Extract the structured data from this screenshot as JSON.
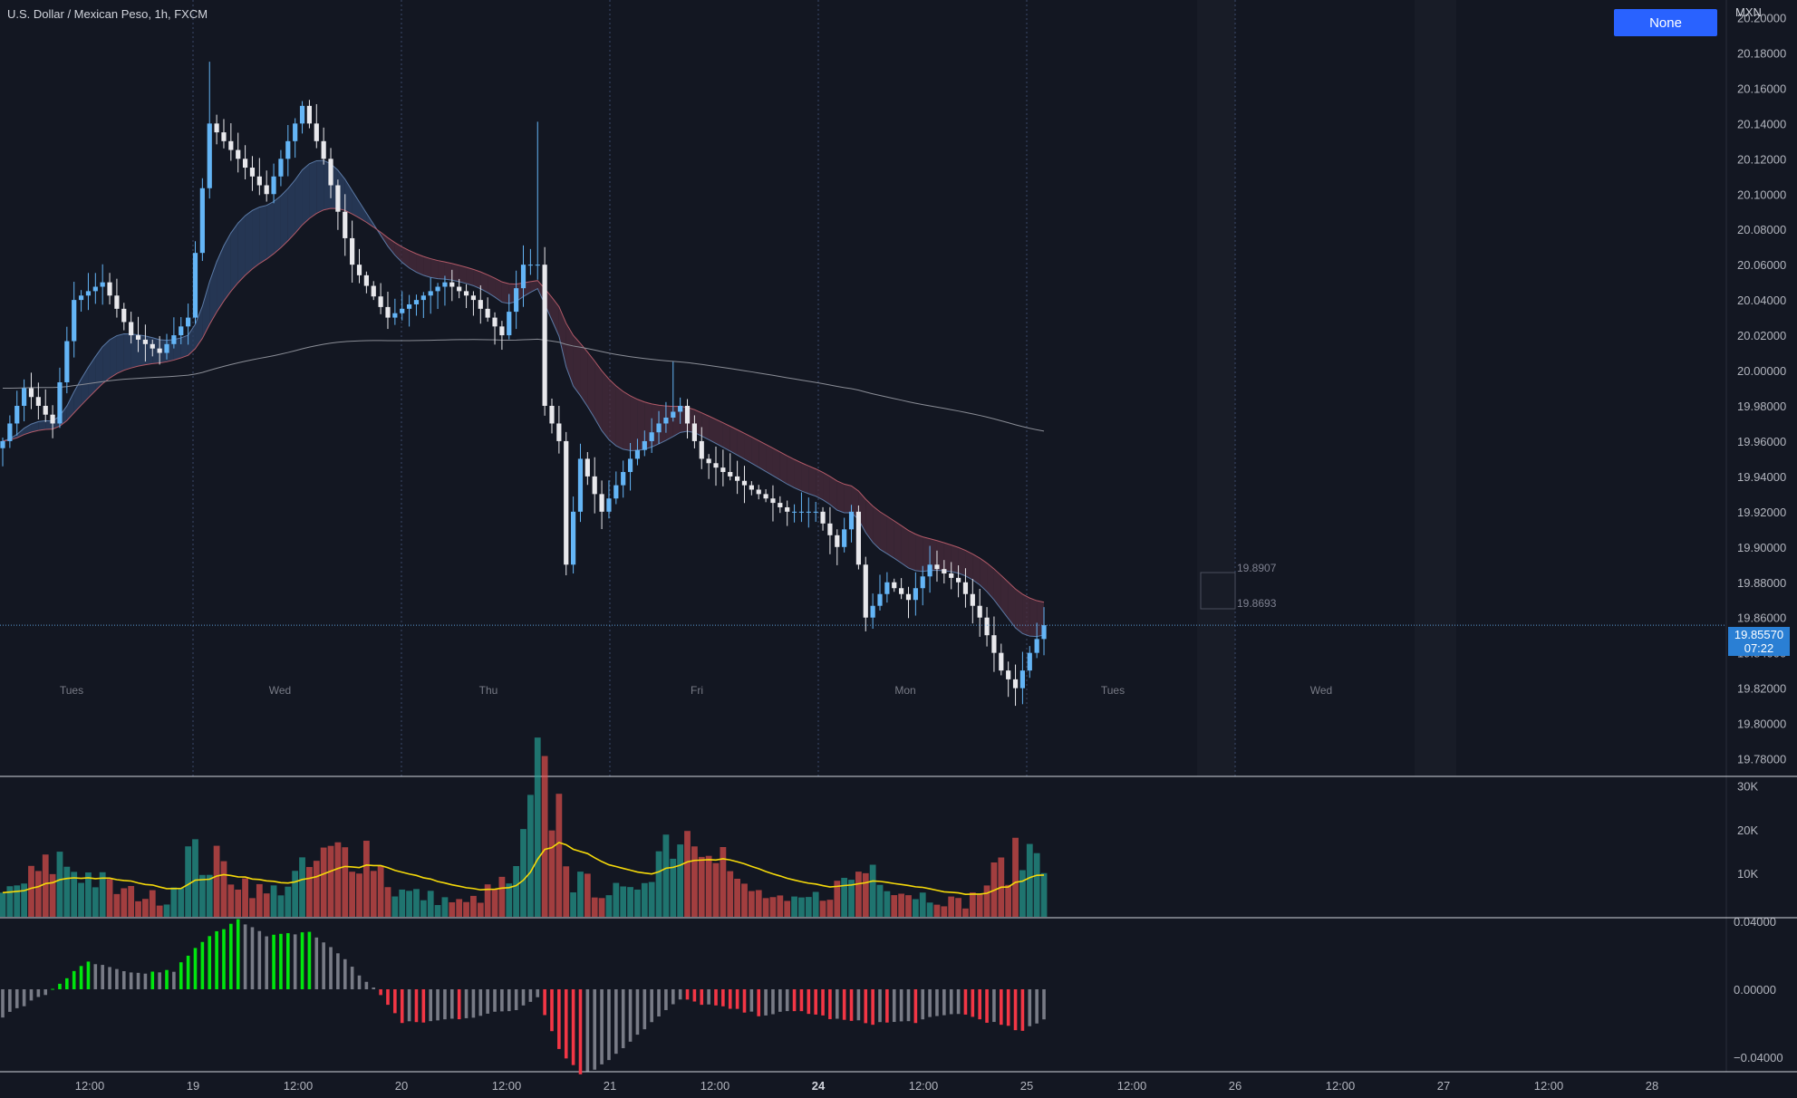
{
  "header": {
    "title": "U.S. Dollar / Mexican Peso, 1h, FXCM",
    "currency": "MXN",
    "mode_button": "None"
  },
  "price_tag": {
    "price": "19.85570",
    "countdown": "07:22"
  },
  "colors": {
    "background": "#131722",
    "up_candle": "#64b5f6",
    "down_candle": "#e8e8ec",
    "vol_up": "#26a69a",
    "vol_down": "#ef5350",
    "volume_ma": "#f5d90a",
    "macd_green": "#00e60e",
    "macd_gray": "#787b86",
    "macd_red": "#f23645",
    "ribbon_blue": "#5b7aa6",
    "ribbon_red": "#b35a68",
    "sma_line": "#8a8d96"
  },
  "chart_data": [
    {
      "type": "candlestick",
      "title": "U.S. Dollar / Mexican Peso, 1h, FXCM",
      "ylabel": "MXN",
      "ylim": [
        19.77,
        20.21
      ],
      "y_ticks": [
        "20.20000",
        "20.18000",
        "20.16000",
        "20.14000",
        "20.12000",
        "20.10000",
        "20.08000",
        "20.06000",
        "20.04000",
        "20.02000",
        "20.00000",
        "19.98000",
        "19.96000",
        "19.94000",
        "19.92000",
        "19.90000",
        "19.88000",
        "19.86000",
        "19.84000",
        "19.82000",
        "19.80000",
        "19.78000"
      ],
      "session_labels": [
        "Tues",
        "Wed",
        "Thu",
        "Fri",
        "Mon",
        "Tues",
        "Wed"
      ],
      "annotations": [
        "19.8907",
        "19.8693"
      ],
      "x_ticks": [
        "12:00",
        "19",
        "12:00",
        "20",
        "12:00",
        "21",
        "12:00",
        "24",
        "12:00",
        "25",
        "12:00",
        "26",
        "12:00",
        "27",
        "12:00",
        "28"
      ],
      "last_price": 19.8557,
      "keypoints": [
        {
          "bar": 0,
          "price": 19.96
        },
        {
          "bar": 3,
          "price": 19.99
        },
        {
          "bar": 7,
          "price": 19.97
        },
        {
          "bar": 10,
          "price": 20.04
        },
        {
          "bar": 14,
          "price": 20.05
        },
        {
          "bar": 18,
          "price": 20.02
        },
        {
          "bar": 22,
          "price": 20.01
        },
        {
          "bar": 26,
          "price": 20.03
        },
        {
          "bar": 29,
          "price": 20.14
        },
        {
          "bar": 33,
          "price": 20.12
        },
        {
          "bar": 37,
          "price": 20.1
        },
        {
          "bar": 42,
          "price": 20.15
        },
        {
          "bar": 45,
          "price": 20.12
        },
        {
          "bar": 49,
          "price": 20.06
        },
        {
          "bar": 54,
          "price": 20.03
        },
        {
          "bar": 58,
          "price": 20.04
        },
        {
          "bar": 62,
          "price": 20.05
        },
        {
          "bar": 66,
          "price": 20.04
        },
        {
          "bar": 70,
          "price": 20.02
        },
        {
          "bar": 73,
          "price": 20.06
        },
        {
          "bar": 75,
          "price": 20.06
        },
        {
          "bar": 76,
          "price": 19.98
        },
        {
          "bar": 78,
          "price": 19.96
        },
        {
          "bar": 79,
          "price": 19.89
        },
        {
          "bar": 81,
          "price": 19.95
        },
        {
          "bar": 84,
          "price": 19.92
        },
        {
          "bar": 88,
          "price": 19.95
        },
        {
          "bar": 92,
          "price": 19.97
        },
        {
          "bar": 95,
          "price": 19.98
        },
        {
          "bar": 98,
          "price": 19.95
        },
        {
          "bar": 102,
          "price": 19.94
        },
        {
          "bar": 106,
          "price": 19.93
        },
        {
          "bar": 110,
          "price": 19.92
        },
        {
          "bar": 114,
          "price": 19.92
        },
        {
          "bar": 117,
          "price": 19.9
        },
        {
          "bar": 119,
          "price": 19.92
        },
        {
          "bar": 121,
          "price": 19.86
        },
        {
          "bar": 124,
          "price": 19.88
        },
        {
          "bar": 127,
          "price": 19.87
        },
        {
          "bar": 130,
          "price": 19.89
        },
        {
          "bar": 134,
          "price": 19.88
        },
        {
          "bar": 137,
          "price": 19.86
        },
        {
          "bar": 140,
          "price": 19.83
        },
        {
          "bar": 142,
          "price": 19.82
        },
        {
          "bar": 144,
          "price": 19.84
        },
        {
          "bar": 146,
          "price": 19.8557
        }
      ]
    },
    {
      "type": "bar",
      "title": "Volume",
      "ylim": [
        0,
        32000
      ],
      "y_ticks": [
        "30K",
        "20K",
        "10K"
      ],
      "keypoints": [
        {
          "bar": 0,
          "value": 5000
        },
        {
          "bar": 8,
          "value": 13000
        },
        {
          "bar": 16,
          "value": 6000
        },
        {
          "bar": 23,
          "value": 4000
        },
        {
          "bar": 26,
          "value": 14000
        },
        {
          "bar": 30,
          "value": 12000
        },
        {
          "bar": 37,
          "value": 5000
        },
        {
          "bar": 46,
          "value": 14000
        },
        {
          "bar": 51,
          "value": 16000
        },
        {
          "bar": 55,
          "value": 6000
        },
        {
          "bar": 65,
          "value": 3000
        },
        {
          "bar": 72,
          "value": 9000
        },
        {
          "bar": 75,
          "value": 31000
        },
        {
          "bar": 78,
          "value": 24000
        },
        {
          "bar": 80,
          "value": 8000
        },
        {
          "bar": 88,
          "value": 5000
        },
        {
          "bar": 93,
          "value": 18000
        },
        {
          "bar": 99,
          "value": 22000
        },
        {
          "bar": 103,
          "value": 7000
        },
        {
          "bar": 110,
          "value": 3000
        },
        {
          "bar": 115,
          "value": 5000
        },
        {
          "bar": 122,
          "value": 12000
        },
        {
          "bar": 126,
          "value": 6000
        },
        {
          "bar": 135,
          "value": 3000
        },
        {
          "bar": 140,
          "value": 11000
        },
        {
          "bar": 144,
          "value": 15000
        },
        {
          "bar": 146,
          "value": 16000
        }
      ]
    },
    {
      "type": "bar",
      "title": "MACD histogram",
      "ylim": [
        -0.052,
        0.05
      ],
      "y_ticks": [
        "0.04000",
        "0.00000",
        "−0.04000"
      ],
      "keypoints": [
        {
          "bar": 0,
          "value": -0.016
        },
        {
          "bar": 6,
          "value": -0.003
        },
        {
          "bar": 9,
          "value": 0.007
        },
        {
          "bar": 12,
          "value": 0.016
        },
        {
          "bar": 18,
          "value": 0.009
        },
        {
          "bar": 24,
          "value": 0.011
        },
        {
          "bar": 28,
          "value": 0.028
        },
        {
          "bar": 33,
          "value": 0.042
        },
        {
          "bar": 37,
          "value": 0.031
        },
        {
          "bar": 43,
          "value": 0.034
        },
        {
          "bar": 48,
          "value": 0.018
        },
        {
          "bar": 51,
          "value": 0.004
        },
        {
          "bar": 53,
          "value": -0.003
        },
        {
          "bar": 56,
          "value": -0.02
        },
        {
          "bar": 60,
          "value": -0.019
        },
        {
          "bar": 66,
          "value": -0.016
        },
        {
          "bar": 72,
          "value": -0.012
        },
        {
          "bar": 75,
          "value": -0.004
        },
        {
          "bar": 78,
          "value": -0.035
        },
        {
          "bar": 81,
          "value": -0.05
        },
        {
          "bar": 84,
          "value": -0.045
        },
        {
          "bar": 90,
          "value": -0.023
        },
        {
          "bar": 95,
          "value": -0.006
        },
        {
          "bar": 100,
          "value": -0.01
        },
        {
          "bar": 106,
          "value": -0.015
        },
        {
          "bar": 112,
          "value": -0.013
        },
        {
          "bar": 117,
          "value": -0.018
        },
        {
          "bar": 122,
          "value": -0.02
        },
        {
          "bar": 128,
          "value": -0.019
        },
        {
          "bar": 134,
          "value": -0.014
        },
        {
          "bar": 139,
          "value": -0.02
        },
        {
          "bar": 143,
          "value": -0.025
        },
        {
          "bar": 146,
          "value": -0.018
        }
      ]
    }
  ]
}
